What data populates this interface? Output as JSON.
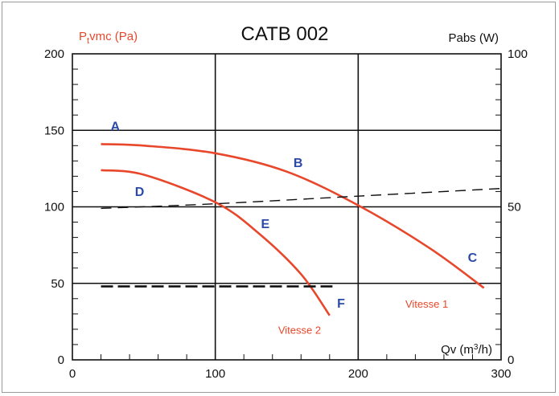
{
  "chart_data": {
    "type": "line",
    "title": "CATB 002",
    "ylabel_left_base": "P",
    "ylabel_left_sub": "t",
    "ylabel_left_rest": "vmc (Pa)",
    "ylabel_right": "Pabs (W)",
    "xlabel_base": "Qv (m",
    "xlabel_sup": "3",
    "xlabel_rest": "/h)",
    "xlim": [
      0,
      300
    ],
    "ylim_left": [
      0,
      200
    ],
    "ylim_right": [
      0,
      100
    ],
    "x_ticks": [
      "0",
      "100",
      "200",
      "300"
    ],
    "y_left_ticks": [
      "0",
      "50",
      "100",
      "150",
      "200"
    ],
    "y_right_ticks": [
      "0",
      "50",
      "100"
    ],
    "grid": true,
    "colors": {
      "pressure_curve": "#e8472b",
      "label_left_axis": "#e8472b",
      "point_label": "#2b4aa8",
      "power_curve": "#111111",
      "grid": "#111111"
    },
    "series": [
      {
        "name": "Vitesse 1",
        "axis": "left",
        "style": "solid",
        "x": [
          20,
          50,
          100,
          150,
          200,
          250,
          288
        ],
        "y": [
          141,
          140,
          135,
          123,
          101,
          73,
          47
        ]
      },
      {
        "name": "Vitesse 2",
        "axis": "left",
        "style": "solid",
        "x": [
          20,
          50,
          100,
          130,
          160,
          180
        ],
        "y": [
          124,
          121,
          103,
          83,
          56,
          29
        ]
      },
      {
        "axis": "right",
        "style": "dashed",
        "x": [
          20,
          100,
          200,
          300
        ],
        "y": [
          49.5,
          51,
          53.5,
          56
        ]
      },
      {
        "axis": "right",
        "style": "dashed-thick",
        "x": [
          20,
          182
        ],
        "y": [
          24,
          24
        ]
      }
    ],
    "point_labels": [
      {
        "text": "A",
        "x": 30,
        "y": 150
      },
      {
        "text": "B",
        "x": 158,
        "y": 126
      },
      {
        "text": "C",
        "x": 280,
        "y": 64
      },
      {
        "text": "D",
        "x": 47,
        "y": 107
      },
      {
        "text": "E",
        "x": 135,
        "y": 86
      },
      {
        "text": "F",
        "x": 188,
        "y": 34
      }
    ],
    "curve_labels": [
      {
        "text": "Vitesse 1",
        "x": 248,
        "y": 34
      },
      {
        "text": "Vitesse 2",
        "x": 159,
        "y": 17
      }
    ]
  }
}
